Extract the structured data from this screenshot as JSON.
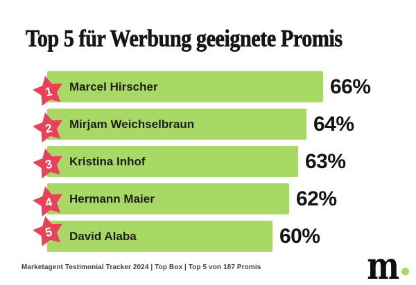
{
  "title": "Top 5 für Werbung geeignete Promis",
  "chart_data": {
    "type": "bar",
    "orientation": "horizontal",
    "title": "Top 5 für Werbung geeignete Promis",
    "categories": [
      "Marcel Hirscher",
      "Mirjam Weichselbraun",
      "Kristina Inhof",
      "Hermann Maier",
      "David Alaba"
    ],
    "values": [
      66,
      64,
      63,
      62,
      60
    ],
    "ranks": [
      "1",
      "2",
      "3",
      "4",
      "5"
    ],
    "value_suffix": "%",
    "value_labels": [
      "66%",
      "64%",
      "63%",
      "62%",
      "60%"
    ],
    "bar_color": "#a7d964",
    "rank_badge_color": "#e6425a",
    "rank_badge_shape": "star-icon",
    "label_color": "#1d1d1b",
    "grid": false,
    "legend": "none",
    "axis": "none"
  },
  "footer": {
    "source": "Marketagent Testimonial Tracker 2024 | Top Box | Top 5 von 187 Promis"
  },
  "logo": {
    "text": "m",
    "dot_color": "#a7d964"
  }
}
